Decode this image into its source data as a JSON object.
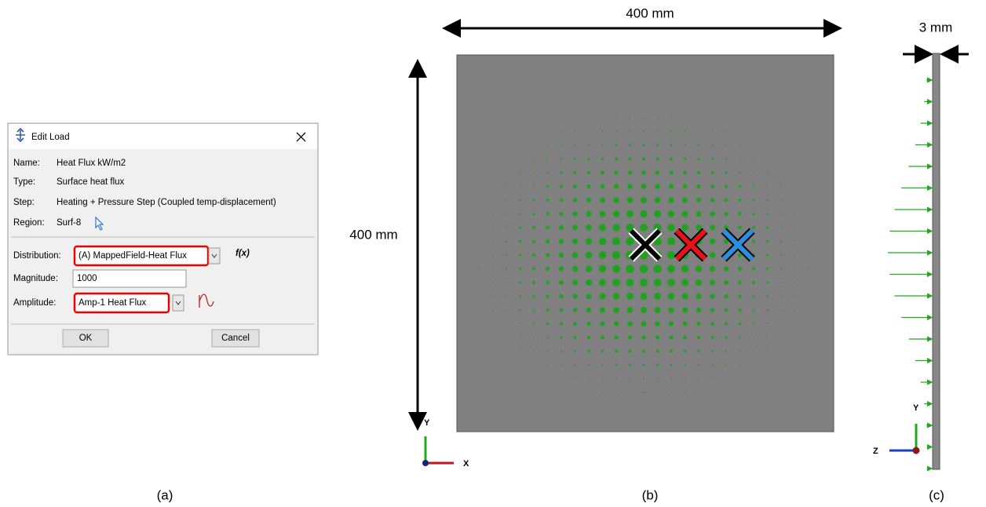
{
  "dialog": {
    "title": "Edit Load",
    "fields": [
      {
        "label": "Name:",
        "value": "Heat Flux kW/m2"
      },
      {
        "label": "Type:",
        "value": "Surface heat flux"
      },
      {
        "label": "Step:",
        "value": "Heating + Pressure Step (Coupled temp-displacement)"
      },
      {
        "label": "Region:",
        "value": "Surf-8"
      }
    ],
    "distribution": {
      "label": "Distribution:",
      "value": "(A) MappedField-Heat Flux",
      "button": "f(x)"
    },
    "magnitude": {
      "label": "Magnitude:",
      "value": "1000"
    },
    "amplitude": {
      "label": "Amplitude:",
      "value": "Amp-1 Heat Flux"
    },
    "buttons": [
      "OK",
      "Cancel"
    ]
  },
  "plate": {
    "width_label": "400 mm",
    "height_label": "400 mm",
    "axes": [
      "Y",
      "X"
    ]
  },
  "side": {
    "thickness_label": "3 mm",
    "axes": [
      "Y",
      "Z"
    ]
  },
  "captions": [
    "(a)",
    "(b)",
    "(c)"
  ]
}
